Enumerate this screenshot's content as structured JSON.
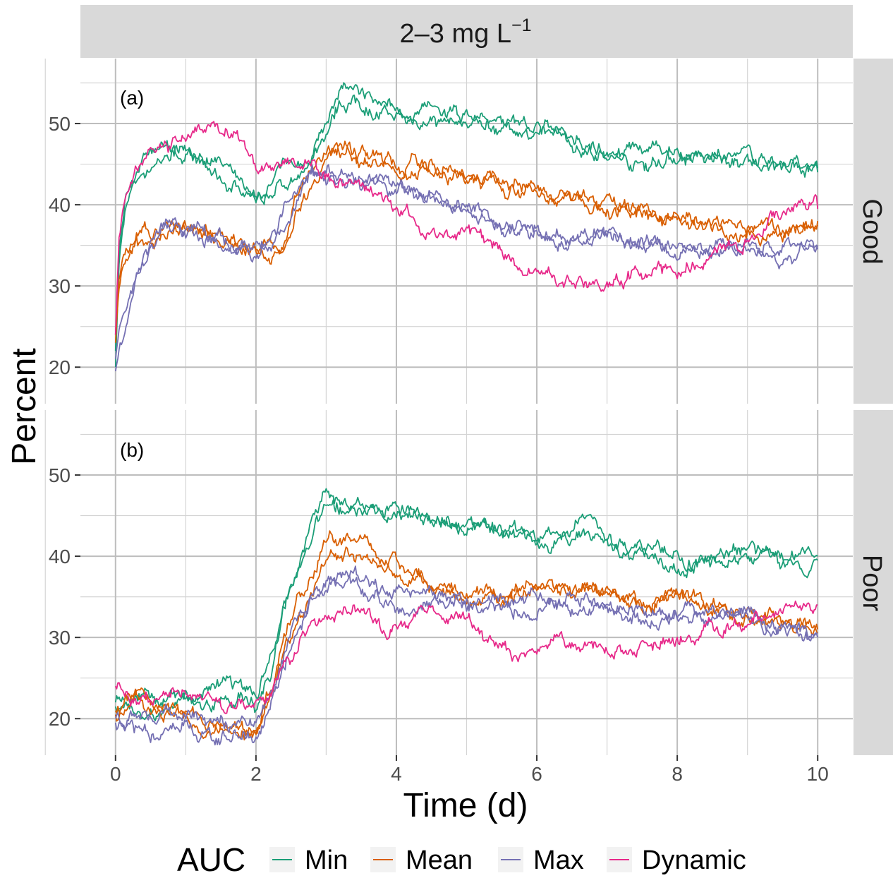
{
  "chart_data": {
    "type": "line",
    "strip_top": {
      "text": "2–3  mg  L",
      "sup": "−1"
    },
    "xlabel": "Time (d)",
    "ylabel": "Percent",
    "xlim": [
      -0.5,
      10.5
    ],
    "ylim": [
      15.5,
      58
    ],
    "x_ticks": [
      0,
      2,
      4,
      6,
      8,
      10
    ],
    "x_tick_labels": [
      "0",
      "2",
      "4",
      "6",
      "8",
      "10"
    ],
    "y_ticks": [
      20,
      30,
      40,
      50
    ],
    "y_tick_labels": [
      "20",
      "30",
      "40",
      "50"
    ],
    "grid": true,
    "legend": {
      "position": "bottom",
      "title": "AUC",
      "entries": [
        {
          "label": "Min",
          "color": "#1b9e77"
        },
        {
          "label": "Mean",
          "color": "#d95f02"
        },
        {
          "label": "Max",
          "color": "#7570b3"
        },
        {
          "label": "Dynamic",
          "color": "#e7298a"
        }
      ]
    },
    "panels": [
      {
        "row_label": "Good",
        "annotation": "(a)",
        "series": [
          {
            "group": "Min",
            "color": "#1b9e77",
            "x": [
              0,
              0.05,
              0.15,
              0.3,
              0.5,
              0.8,
              1.0,
              1.3,
              1.6,
              1.8,
              2.0,
              2.2,
              2.4,
              2.6,
              2.8,
              3.0,
              3.2,
              3.5,
              3.8,
              4.2,
              4.6,
              5.0,
              5.5,
              6.0,
              6.5,
              7.0,
              7.5,
              8.0,
              8.5,
              9.0,
              9.5,
              10.0
            ],
            "y": [
              20,
              33,
              40,
              43,
              45,
              46.5,
              46,
              44,
              42.5,
              42,
              41,
              42,
              44.5,
              45,
              46,
              49,
              53,
              52.5,
              51,
              50.5,
              50.5,
              50,
              49.5,
              49,
              48.5,
              46,
              45,
              46,
              45.5,
              46,
              45,
              44
            ]
          },
          {
            "group": "Min",
            "color": "#1b9e77",
            "x": [
              0,
              0.05,
              0.15,
              0.3,
              0.5,
              0.8,
              1.0,
              1.3,
              1.6,
              1.8,
              2.0,
              2.2,
              2.4,
              2.6,
              2.8,
              3.0,
              3.2,
              3.5,
              3.8,
              4.2,
              4.6,
              5.0,
              5.5,
              6.0,
              6.5,
              7.0,
              7.5,
              8.0,
              8.5,
              9.0,
              9.5,
              10.0
            ],
            "y": [
              22,
              34,
              41,
              44.5,
              46.5,
              47,
              46.5,
              45.5,
              44,
              43,
              41.5,
              41,
              42.5,
              44,
              45,
              50,
              54.5,
              53.5,
              51.5,
              51,
              51.5,
              51,
              50,
              49.5,
              48,
              47,
              46.5,
              47,
              46,
              45,
              44,
              44.5
            ]
          },
          {
            "group": "Mean",
            "color": "#d95f02",
            "x": [
              0,
              0.05,
              0.15,
              0.3,
              0.5,
              0.8,
              1.0,
              1.3,
              1.6,
              1.8,
              2.0,
              2.2,
              2.4,
              2.6,
              2.8,
              3.0,
              3.3,
              3.7,
              4.0,
              4.5,
              5.0,
              5.5,
              6.0,
              6.5,
              7.0,
              7.5,
              8.0,
              8.5,
              9.0,
              9.5,
              10.0
            ],
            "y": [
              23,
              30,
              33,
              35,
              36,
              37,
              37.5,
              37,
              36,
              35,
              34.5,
              35,
              35,
              40,
              43,
              46,
              47,
              46,
              45,
              44.5,
              43.5,
              43,
              42,
              41,
              40,
              39,
              38.5,
              37.5,
              37,
              37,
              37.5
            ]
          },
          {
            "group": "Mean",
            "color": "#d95f02",
            "x": [
              0,
              0.05,
              0.15,
              0.3,
              0.5,
              0.8,
              1.0,
              1.3,
              1.6,
              1.8,
              2.0,
              2.2,
              2.4,
              2.6,
              2.8,
              3.0,
              3.3,
              3.7,
              4.0,
              4.5,
              5.0,
              5.5,
              6.0,
              6.5,
              7.0,
              7.5,
              8.0,
              8.5,
              9.0,
              9.5,
              10.0
            ],
            "y": [
              24,
              31,
              34,
              35.5,
              36.5,
              37.5,
              37,
              36.5,
              35.5,
              35,
              34,
              34.5,
              35.5,
              41,
              44,
              45.5,
              46.5,
              45,
              44.5,
              44,
              43,
              42.5,
              41.5,
              40.5,
              39.5,
              39,
              38,
              37,
              36.5,
              36,
              38
            ]
          },
          {
            "group": "Max",
            "color": "#7570b3",
            "x": [
              0,
              0.05,
              0.15,
              0.3,
              0.5,
              0.7,
              1.0,
              1.3,
              1.6,
              1.8,
              2.0,
              2.2,
              2.4,
              2.6,
              2.8,
              3.0,
              3.3,
              3.7,
              4.0,
              4.5,
              5.0,
              5.5,
              6.0,
              6.5,
              7.0,
              7.5,
              8.0,
              8.5,
              9.0,
              9.5,
              10.0
            ],
            "y": [
              19.5,
              23,
              25,
              31,
              35,
              37.5,
              37,
              36.5,
              35,
              34.5,
              35,
              35,
              37.5,
              41,
              44,
              44,
              43,
              42,
              41.5,
              40,
              39.5,
              38,
              37,
              35.5,
              36,
              35.5,
              34.5,
              34.5,
              35,
              34,
              34.5
            ]
          },
          {
            "group": "Max",
            "color": "#7570b3",
            "x": [
              0,
              0.05,
              0.15,
              0.3,
              0.5,
              0.7,
              1.0,
              1.3,
              1.6,
              1.8,
              2.0,
              2.2,
              2.4,
              2.6,
              2.8,
              3.0,
              3.3,
              3.7,
              4.0,
              4.5,
              5.0,
              5.5,
              6.0,
              6.5,
              7.0,
              7.5,
              8.0,
              8.5,
              9.0,
              9.5,
              10.0
            ],
            "y": [
              21,
              24,
              27,
              32,
              36,
              38,
              36.5,
              36,
              35.5,
              35,
              34,
              35.5,
              39,
              42,
              45,
              43.5,
              42.5,
              43,
              42,
              41,
              39,
              37.5,
              36.5,
              36,
              36.5,
              35,
              34,
              35,
              35.5,
              33,
              35
            ]
          },
          {
            "group": "Dynamic",
            "color": "#e7298a",
            "x": [
              0,
              0.05,
              0.15,
              0.3,
              0.5,
              0.8,
              1.0,
              1.3,
              1.6,
              1.8,
              2.0,
              2.2,
              2.5,
              2.8,
              3.0,
              3.3,
              3.6,
              4.0,
              4.3,
              4.6,
              5.0,
              5.3,
              5.6,
              6.0,
              6.3,
              6.6,
              7.0,
              7.5,
              8.0,
              8.5,
              9.0,
              9.5,
              9.8,
              10.0
            ],
            "y": [
              24,
              36,
              42,
              44.5,
              45.5,
              47.5,
              48.5,
              49.5,
              49.5,
              48,
              44,
              44,
              45,
              44.5,
              43.5,
              42.5,
              41,
              40,
              37.5,
              36,
              37,
              36,
              33.5,
              32,
              31,
              31,
              30.5,
              31.5,
              32,
              33.5,
              36,
              39.5,
              41,
              39.5
            ]
          }
        ]
      },
      {
        "row_label": "Poor",
        "annotation": "(b)",
        "series": [
          {
            "group": "Min",
            "color": "#1b9e77",
            "x": [
              0,
              0.3,
              0.6,
              1.0,
              1.4,
              1.8,
              2.0,
              2.2,
              2.4,
              2.6,
              2.8,
              3.0,
              3.2,
              3.5,
              3.8,
              4.2,
              4.6,
              5.0,
              5.5,
              6.0,
              6.5,
              6.7,
              7.0,
              7.5,
              8.0,
              8.5,
              9.0,
              9.5,
              10.0
            ],
            "y": [
              21.5,
              20.5,
              21,
              22,
              22.5,
              22,
              21.5,
              25,
              33,
              38,
              42,
              46,
              46,
              46.5,
              45.5,
              45,
              44.5,
              44,
              43,
              42.5,
              43,
              45,
              42,
              41,
              40,
              39,
              40,
              40,
              40
            ]
          },
          {
            "group": "Min",
            "color": "#1b9e77",
            "x": [
              0,
              0.3,
              0.6,
              1.0,
              1.4,
              1.8,
              2.0,
              2.2,
              2.4,
              2.6,
              2.8,
              3.0,
              3.2,
              3.5,
              3.8,
              4.2,
              4.6,
              5.0,
              5.5,
              6.0,
              6.5,
              6.7,
              7.0,
              7.5,
              8.0,
              8.5,
              9.0,
              9.5,
              10.0
            ],
            "y": [
              22,
              22.5,
              22,
              23,
              23,
              23.5,
              23,
              27,
              34,
              39,
              44,
              48,
              47,
              46.5,
              45.5,
              45,
              44,
              43.5,
              43,
              42,
              42.5,
              43,
              41,
              40,
              38.5,
              40,
              41,
              39,
              39.5
            ]
          },
          {
            "group": "Mean",
            "color": "#d95f02",
            "x": [
              0,
              0.3,
              0.6,
              1.0,
              1.4,
              1.8,
              2.0,
              2.2,
              2.4,
              2.6,
              2.8,
              3.0,
              3.3,
              3.6,
              4.0,
              4.5,
              5.0,
              5.5,
              6.0,
              6.5,
              7.0,
              7.5,
              8.0,
              8.5,
              9.0,
              9.5,
              10.0
            ],
            "y": [
              21,
              22.5,
              21,
              20,
              19.5,
              19,
              18.5,
              22,
              28,
              33,
              36,
              40,
              41,
              40.5,
              39.5,
              37,
              35,
              35,
              36,
              35,
              35.5,
              34,
              35,
              34,
              33,
              32,
              31
            ]
          },
          {
            "group": "Mean",
            "color": "#d95f02",
            "x": [
              0,
              0.3,
              0.6,
              1.0,
              1.4,
              1.8,
              2.0,
              2.2,
              2.4,
              2.6,
              2.8,
              3.0,
              3.3,
              3.6,
              4.0,
              4.5,
              5.0,
              5.5,
              6.0,
              6.5,
              7.0,
              7.5,
              8.0,
              8.5,
              9.0,
              9.5,
              10.0
            ],
            "y": [
              20.5,
              23.5,
              22,
              20.5,
              20,
              19,
              18.5,
              23,
              30,
              35,
              38,
              41.5,
              42.5,
              41,
              39,
              36.5,
              35.5,
              35,
              36.5,
              35.5,
              36,
              34.5,
              35.5,
              33.5,
              32.5,
              31.5,
              30.5
            ]
          },
          {
            "group": "Max",
            "color": "#7570b3",
            "x": [
              0,
              0.3,
              0.5,
              0.8,
              1.0,
              1.3,
              1.6,
              1.8,
              2.0,
              2.2,
              2.4,
              2.6,
              2.8,
              3.0,
              3.3,
              3.6,
              4.0,
              4.5,
              5.0,
              5.5,
              6.0,
              6.5,
              7.0,
              7.5,
              8.0,
              8.5,
              9.0,
              9.5,
              10.0
            ],
            "y": [
              20,
              19,
              18,
              19.5,
              19,
              18,
              17.5,
              18.5,
              18,
              21,
              26,
              31,
              34,
              36,
              37.5,
              36.5,
              36,
              35.5,
              34.5,
              34,
              34.5,
              35,
              34,
              33,
              33,
              33.5,
              32.5,
              31,
              30.5
            ]
          },
          {
            "group": "Max",
            "color": "#7570b3",
            "x": [
              0,
              0.3,
              0.5,
              0.8,
              1.0,
              1.3,
              1.6,
              1.8,
              2.0,
              2.2,
              2.4,
              2.6,
              2.8,
              3.0,
              3.3,
              3.6,
              4.0,
              4.5,
              5.0,
              5.5,
              6.0,
              6.5,
              7.0,
              7.5,
              8.0,
              8.5,
              9.0,
              9.5,
              10.0
            ],
            "y": [
              19.5,
              20.5,
              20,
              21,
              20.5,
              19.5,
              19,
              19.5,
              19,
              22,
              27,
              32,
              35,
              37,
              37,
              35,
              34,
              34.5,
              34,
              33.5,
              33,
              34,
              33.5,
              32,
              32.5,
              33,
              32,
              31.5,
              30
            ]
          },
          {
            "group": "Dynamic",
            "color": "#e7298a",
            "x": [
              0,
              0.3,
              0.6,
              1.0,
              1.4,
              1.8,
              2.0,
              2.2,
              2.4,
              2.6,
              2.8,
              3.0,
              3.3,
              3.6,
              3.8,
              4.0,
              4.5,
              5.0,
              5.3,
              5.6,
              6.0,
              6.5,
              7.0,
              7.5,
              8.0,
              8.5,
              9.0,
              9.5,
              10.0
            ],
            "y": [
              24,
              22,
              23,
              23.5,
              22,
              21,
              21,
              22,
              26,
              29,
              31.5,
              32.5,
              33.5,
              33,
              31,
              31.5,
              33.5,
              33,
              29.5,
              28.5,
              28,
              29,
              28.5,
              29,
              30,
              31.5,
              32,
              34,
              34
            ]
          }
        ]
      }
    ]
  }
}
